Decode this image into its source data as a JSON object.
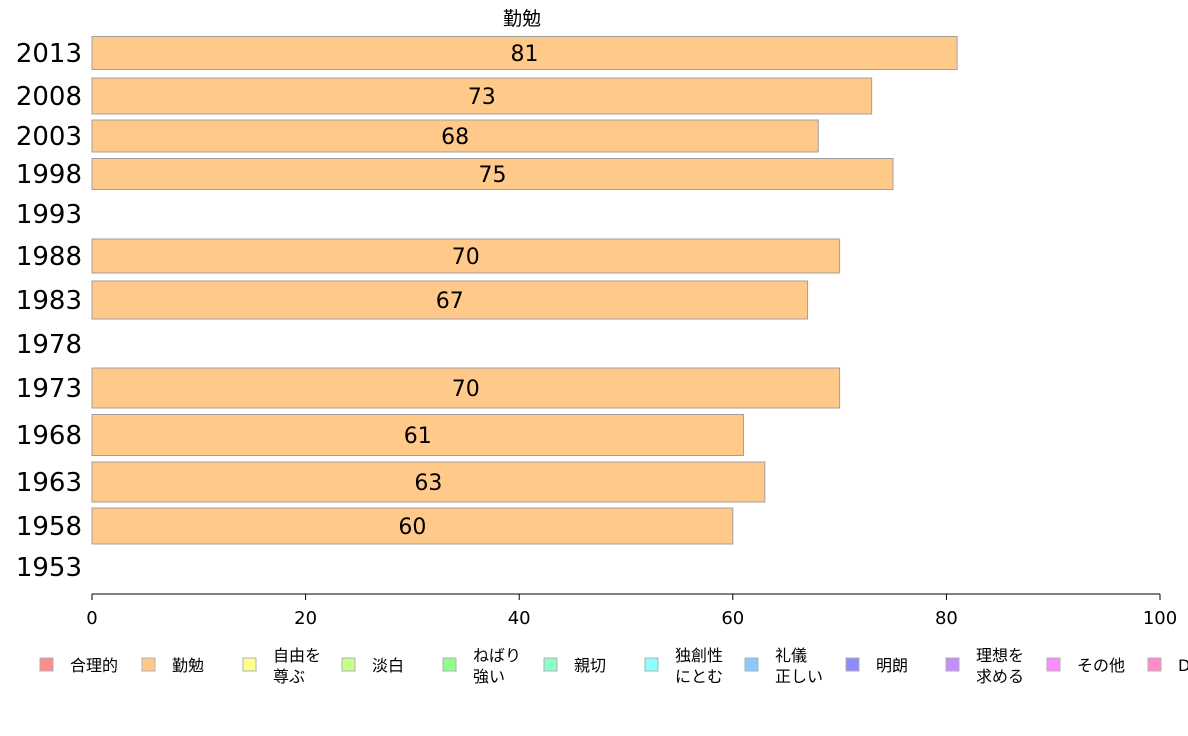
{
  "chart_data": {
    "type": "bar",
    "orientation": "horizontal",
    "title": "勤勉",
    "xlabel": "",
    "ylabel": "",
    "xlim": [
      0,
      100
    ],
    "x_ticks": [
      0,
      20,
      40,
      60,
      80,
      100
    ],
    "categories": [
      "2013",
      "2008",
      "2003",
      "1998",
      "1993",
      "1988",
      "1983",
      "1978",
      "1973",
      "1968",
      "1963",
      "1958",
      "1953"
    ],
    "series": [
      {
        "name": "勤勉",
        "color": "#ffc98a",
        "values": [
          81,
          73,
          68,
          75,
          null,
          70,
          67,
          null,
          70,
          61,
          63,
          60,
          null
        ],
        "labels": [
          "81",
          "73",
          "68",
          "75",
          "",
          "70",
          "67",
          "",
          "70",
          "61",
          "63",
          "60",
          ""
        ]
      }
    ],
    "legend": {
      "placement": "bottom",
      "items": [
        {
          "label": "合理的",
          "color": "#ff8c8c"
        },
        {
          "label": "勤勉",
          "color": "#ffc98a"
        },
        {
          "label": "自由を\n尊ぶ",
          "color": "#ffff8c"
        },
        {
          "label": "淡白",
          "color": "#c8ff8c"
        },
        {
          "label": "ねばり\n強い",
          "color": "#8cff8c"
        },
        {
          "label": "親切",
          "color": "#8cffc8"
        },
        {
          "label": "独創性\nにとむ",
          "color": "#8cffff"
        },
        {
          "label": "礼儀\n正しい",
          "color": "#8cc8ff"
        },
        {
          "label": "明朗",
          "color": "#8c8cff"
        },
        {
          "label": "理想を\n求める",
          "color": "#c88cff"
        },
        {
          "label": "その他",
          "color": "#ff8cff"
        },
        {
          "label": "D",
          "color": "#ff8cc8"
        }
      ]
    },
    "grid": false
  }
}
